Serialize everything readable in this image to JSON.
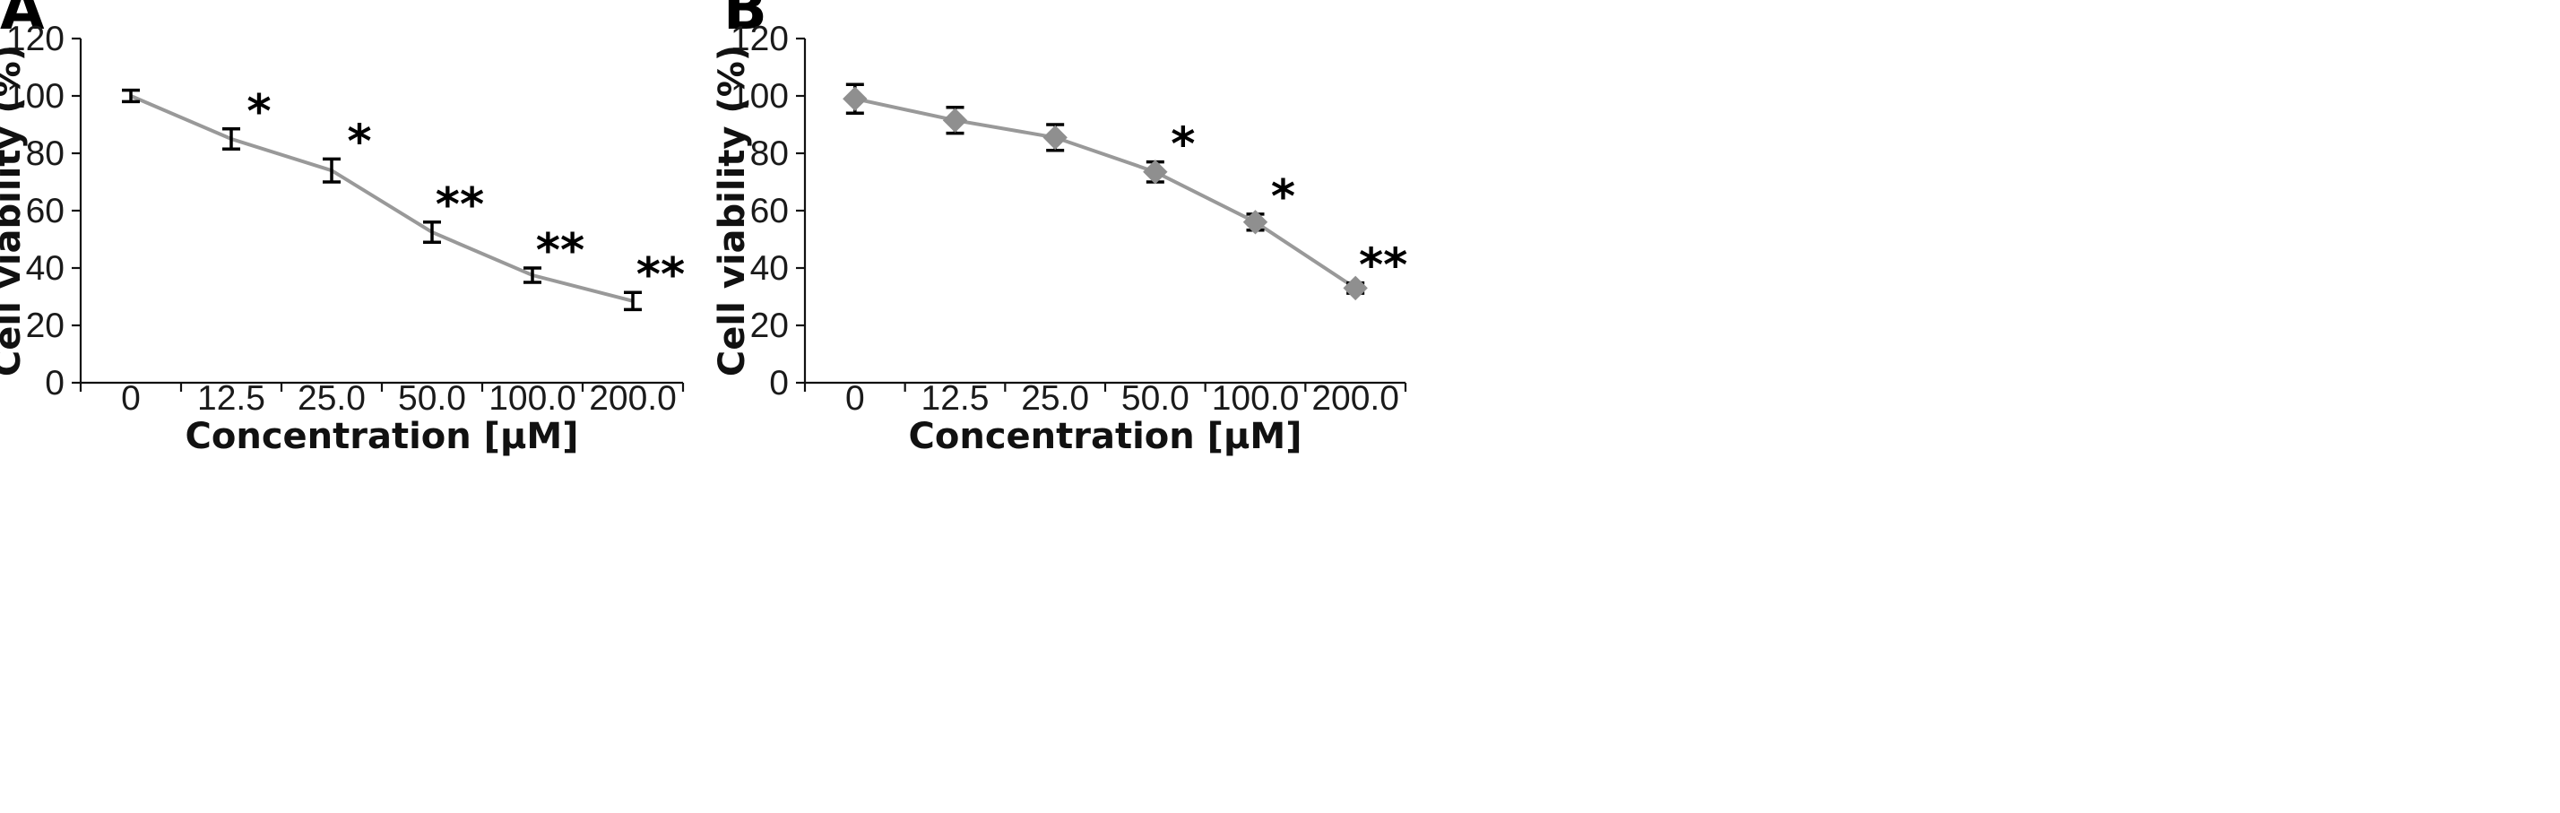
{
  "chart_data": [
    {
      "panel_label": "A",
      "type": "line",
      "marker": "none",
      "xlabel": "Concentration [μM]",
      "ylabel": "Cell viability (%)",
      "categories": [
        "0",
        "12.5",
        "25.0",
        "50.0",
        "100.0",
        "200.0"
      ],
      "ylim": [
        0,
        120
      ],
      "yticks": [
        "0",
        "20",
        "40",
        "60",
        "80",
        "100",
        "120"
      ],
      "values": [
        100,
        85,
        74,
        52.5,
        37.5,
        28.5
      ],
      "errors": [
        2.0,
        3.5,
        4.0,
        3.5,
        2.5,
        3.0
      ],
      "significance": [
        "",
        "*",
        "*",
        "**",
        "**",
        "**"
      ],
      "line_color": "#999999",
      "grid": false
    },
    {
      "panel_label": "B",
      "type": "line",
      "marker": "diamond",
      "xlabel": "Concentration [μM]",
      "ylabel": "Cell viability (%)",
      "categories": [
        "0",
        "12.5",
        "25.0",
        "50.0",
        "100.0",
        "200.0"
      ],
      "ylim": [
        0,
        120
      ],
      "yticks": [
        "0",
        "20",
        "40",
        "60",
        "80",
        "100",
        "120"
      ],
      "values": [
        99,
        91.5,
        85.5,
        73.5,
        56,
        33
      ],
      "errors": [
        5.0,
        4.5,
        4.5,
        3.5,
        2.8,
        1.8
      ],
      "significance": [
        "",
        "",
        "",
        "*",
        "*",
        "**"
      ],
      "line_color": "#999999",
      "grid": false
    }
  ]
}
